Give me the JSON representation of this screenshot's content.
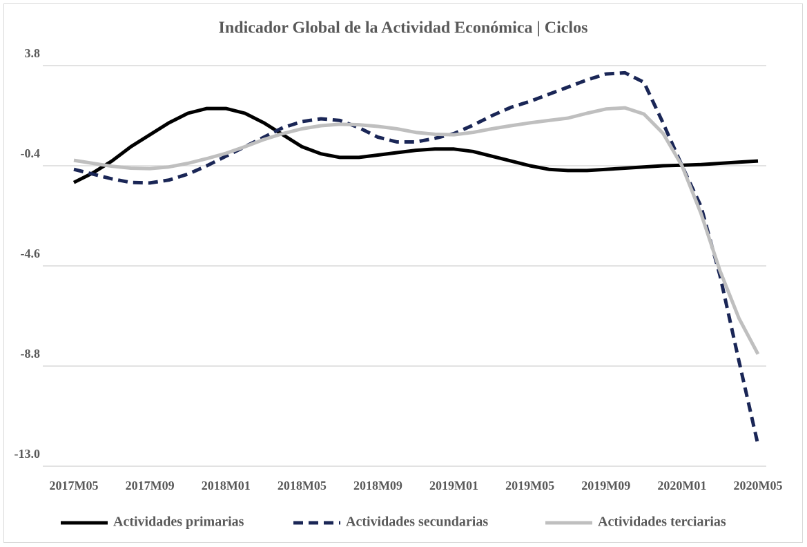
{
  "chart_data": {
    "type": "line",
    "title": "Indicador Global de la Actividad Económica | Ciclos",
    "categories": [
      "2017M05",
      null,
      null,
      null,
      "2017M09",
      null,
      null,
      null,
      "2018M01",
      null,
      null,
      null,
      "2018M05",
      null,
      null,
      null,
      "2018M09",
      null,
      null,
      null,
      "2019M01",
      null,
      null,
      null,
      "2019M05",
      null,
      null,
      null,
      "2019M09",
      null,
      null,
      null,
      "2020M01",
      null,
      null,
      null,
      "2020M05"
    ],
    "series": [
      {
        "name": "Actividades primarias",
        "color": "#000000",
        "dash": false,
        "values": [
          -1.1,
          -0.7,
          -0.2,
          0.4,
          0.9,
          1.4,
          1.8,
          2.0,
          2.0,
          1.8,
          1.4,
          0.9,
          0.4,
          0.1,
          -0.05,
          -0.05,
          0.05,
          0.15,
          0.25,
          0.3,
          0.3,
          0.2,
          0.0,
          -0.2,
          -0.4,
          -0.55,
          -0.6,
          -0.6,
          -0.55,
          -0.5,
          -0.45,
          -0.4,
          -0.38,
          -0.35,
          -0.3,
          -0.25,
          -0.2
        ]
      },
      {
        "name": "Actividades secundarias",
        "color": "#1a2656",
        "dash": true,
        "values": [
          -0.55,
          -0.75,
          -0.95,
          -1.1,
          -1.12,
          -1.0,
          -0.75,
          -0.4,
          0.0,
          0.4,
          0.8,
          1.2,
          1.45,
          1.57,
          1.5,
          1.2,
          0.8,
          0.6,
          0.6,
          0.75,
          0.95,
          1.3,
          1.7,
          2.05,
          2.3,
          2.6,
          2.9,
          3.2,
          3.45,
          3.5,
          3.1,
          1.4,
          -0.4,
          -2.1,
          -5.0,
          -8.6,
          -12.1
        ]
      },
      {
        "name": "Actividades terciarias",
        "color": "#bfbfbf",
        "dash": false,
        "values": [
          -0.17,
          -0.3,
          -0.42,
          -0.5,
          -0.52,
          -0.45,
          -0.3,
          -0.1,
          0.12,
          0.4,
          0.7,
          0.95,
          1.15,
          1.28,
          1.34,
          1.32,
          1.25,
          1.15,
          1.0,
          0.92,
          0.9,
          1.0,
          1.15,
          1.28,
          1.4,
          1.5,
          1.6,
          1.8,
          1.98,
          2.03,
          1.77,
          0.96,
          -0.4,
          -2.4,
          -4.8,
          -6.8,
          -8.3
        ]
      }
    ],
    "ylim": [
      -13,
      3.8
    ],
    "yticks": [
      {
        "value": -13,
        "label": "-13.0"
      },
      -8.8,
      -4.6,
      -0.4,
      3.8
    ],
    "grid": true,
    "legend": "bottom"
  }
}
